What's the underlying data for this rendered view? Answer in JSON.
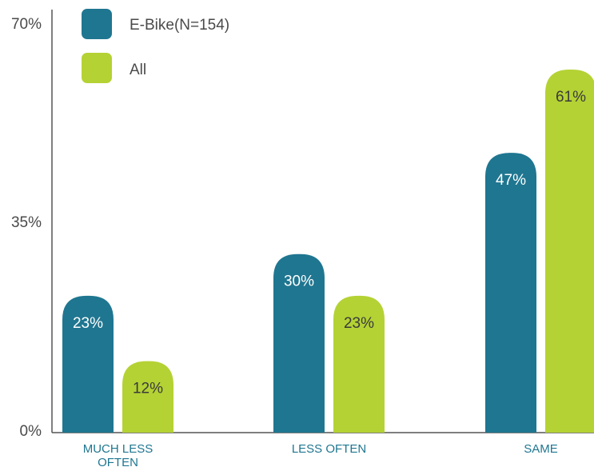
{
  "colors": {
    "ebike": "#1f7690",
    "all": "#b4d234",
    "axis": "#555555",
    "label_on_ebike": "#ffffff",
    "label_on_all": "#3a3a3a",
    "category_text": "#1f7690"
  },
  "chart_data": {
    "type": "bar",
    "title": "",
    "xlabel": "",
    "ylabel": "",
    "ylim": [
      0,
      70
    ],
    "yticks": [
      "0%",
      "35%",
      "70%"
    ],
    "ytick_values": [
      0,
      35,
      70
    ],
    "categories": [
      [
        "MUCH LESS",
        "OFTEN"
      ],
      [
        "LESS OFTEN"
      ],
      [
        "SAME"
      ]
    ],
    "series": [
      {
        "name": "E-Bike(N=154)",
        "values": [
          23,
          30,
          47
        ],
        "labels": [
          "23%",
          "30%",
          "47%"
        ]
      },
      {
        "name": "All",
        "values": [
          12,
          23,
          61
        ],
        "labels": [
          "12%",
          "23%",
          "61%"
        ]
      }
    ],
    "legend_position": "top-left",
    "grid": false
  }
}
